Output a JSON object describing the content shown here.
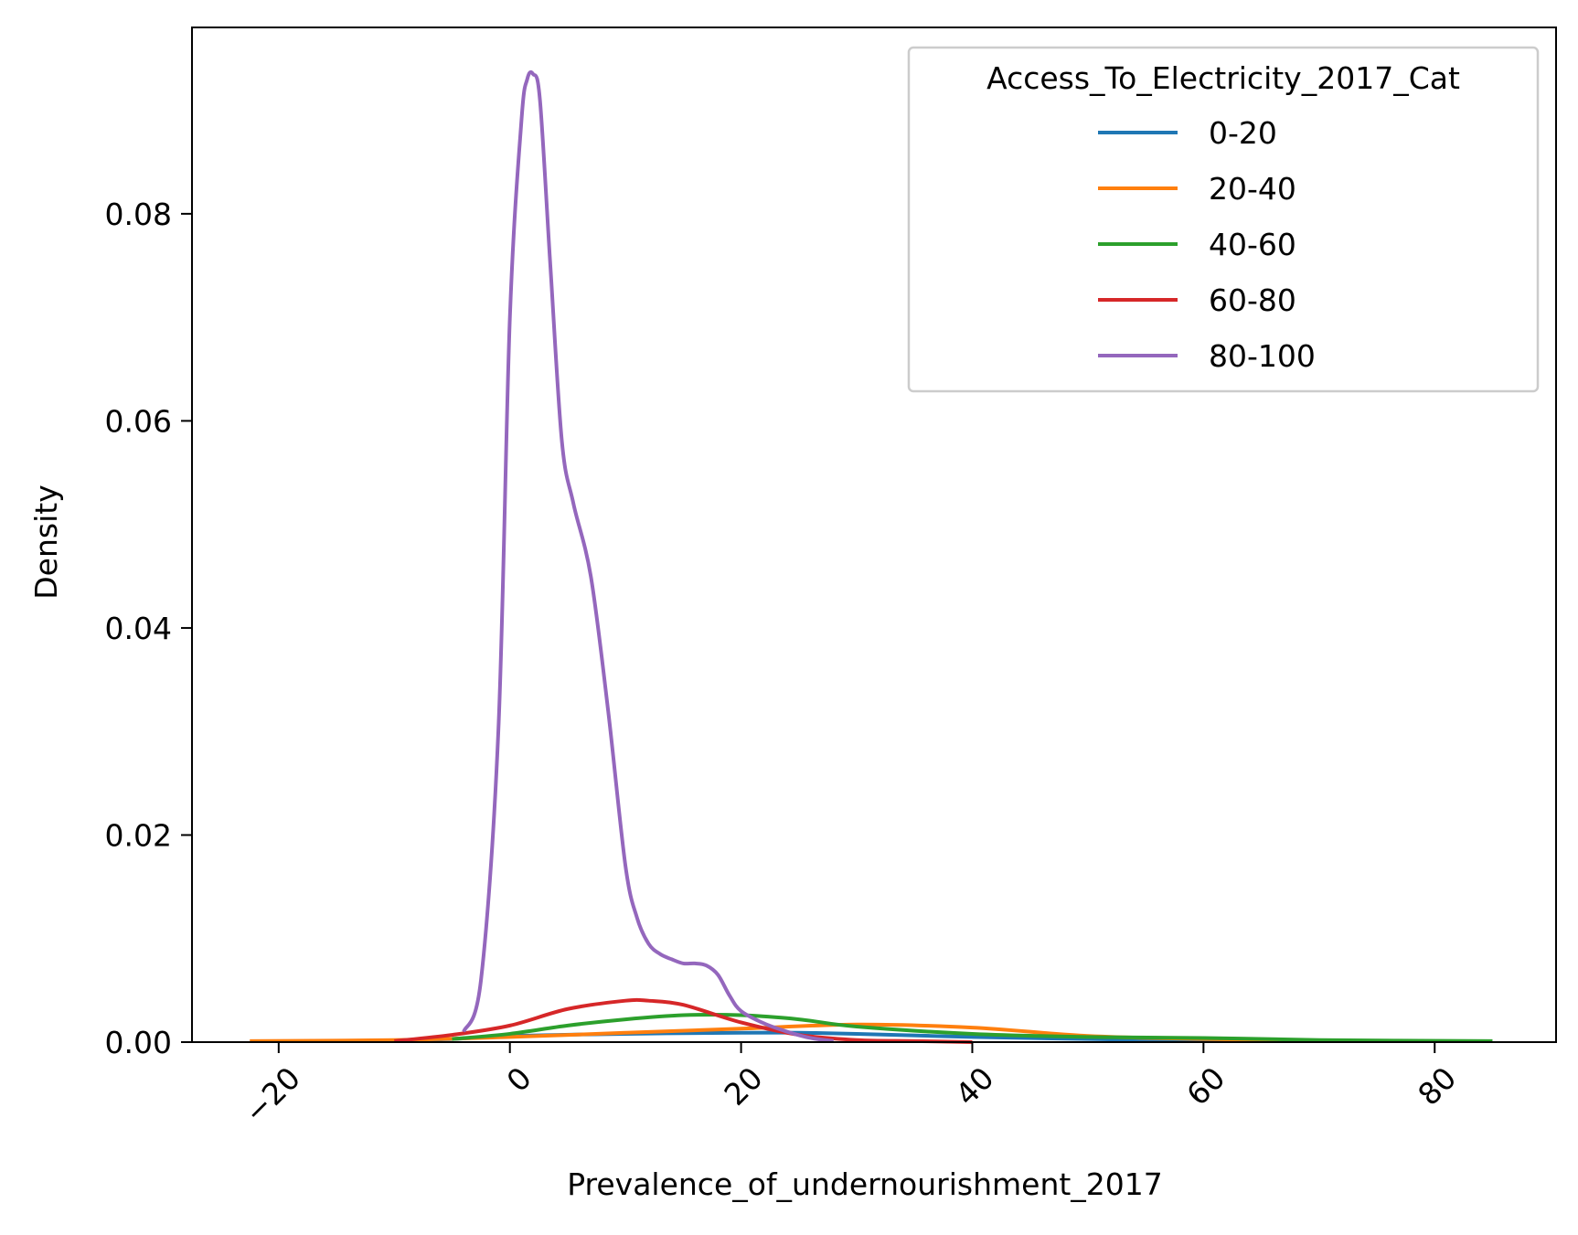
{
  "chart_data": {
    "type": "line",
    "xlabel": "Prevalence_of_undernourishment_2017",
    "ylabel": "Density",
    "xlim": [
      -27.5,
      90.5
    ],
    "ylim": [
      0,
      0.098
    ],
    "x_ticks": [
      -20,
      0,
      20,
      40,
      60,
      80
    ],
    "x_tick_labels": [
      "−20",
      "0",
      "20",
      "40",
      "60",
      "80"
    ],
    "y_ticks": [
      0.0,
      0.02,
      0.04,
      0.06,
      0.08
    ],
    "y_tick_labels": [
      "0.00",
      "0.02",
      "0.04",
      "0.06",
      "0.08"
    ],
    "x_tick_rotation_deg": 45,
    "grid": false,
    "legend": {
      "title": "Access_To_Electricity_2017_Cat",
      "placement": "top-right"
    },
    "series": [
      {
        "name": "0-20",
        "color": "#1f77b4",
        "x": [
          -13,
          -5,
          0,
          10,
          20,
          25,
          30,
          40,
          50,
          62
        ],
        "y": [
          0.0001,
          0.0003,
          0.0006,
          0.0008,
          0.0009,
          0.0009,
          0.0008,
          0.0005,
          0.0003,
          0.0001
        ]
      },
      {
        "name": "20-40",
        "color": "#ff7f0e",
        "x": [
          -22.5,
          -10,
          0,
          10,
          20,
          30,
          40,
          50,
          60,
          68
        ],
        "y": [
          0.0001,
          0.0002,
          0.0005,
          0.0009,
          0.0013,
          0.0017,
          0.0014,
          0.0006,
          0.0003,
          0.0002
        ]
      },
      {
        "name": "40-60",
        "color": "#2ca02c",
        "x": [
          -5,
          0,
          5,
          10,
          15,
          20,
          25,
          30,
          40,
          50,
          60,
          70,
          85
        ],
        "y": [
          0.0003,
          0.0008,
          0.0016,
          0.0022,
          0.0026,
          0.0026,
          0.0022,
          0.0015,
          0.0008,
          0.0005,
          0.0004,
          0.0002,
          0.0001
        ]
      },
      {
        "name": "60-80",
        "color": "#d62728",
        "x": [
          -10,
          -5,
          0,
          5,
          10,
          12,
          15,
          20,
          25,
          30,
          35,
          40
        ],
        "y": [
          0.0001,
          0.0007,
          0.0016,
          0.0032,
          0.004,
          0.004,
          0.0036,
          0.0019,
          0.0007,
          0.0002,
          0.0001,
          0.0
        ]
      },
      {
        "name": "80-100",
        "color": "#9467bd",
        "x": [
          -4,
          -2.5,
          -1,
          0,
          1,
          1.5,
          2,
          2.6,
          3.5,
          4.5,
          5.5,
          7,
          8.5,
          10,
          11,
          12,
          13,
          14,
          15,
          16,
          17,
          18,
          19,
          20,
          22,
          24,
          26,
          28
        ],
        "y": [
          0.001,
          0.006,
          0.03,
          0.07,
          0.089,
          0.093,
          0.0935,
          0.091,
          0.075,
          0.058,
          0.052,
          0.045,
          0.032,
          0.017,
          0.012,
          0.0095,
          0.0085,
          0.008,
          0.0076,
          0.0076,
          0.0074,
          0.0065,
          0.0045,
          0.003,
          0.0018,
          0.001,
          0.0004,
          0.0001
        ]
      }
    ]
  }
}
